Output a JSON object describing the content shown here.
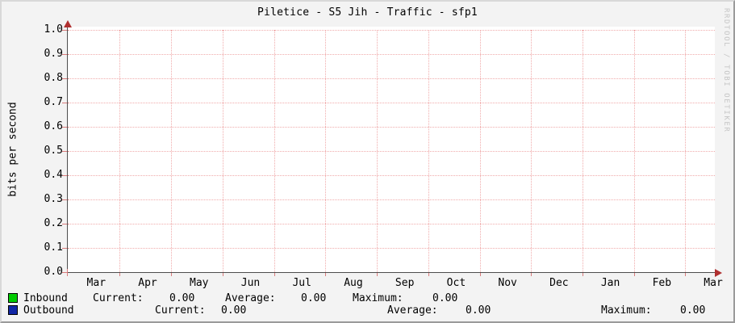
{
  "title": "Piletice - S5 Jih - Traffic - sfp1",
  "watermark": "RRDTOOL / TOBI OETIKER",
  "y_axis": {
    "label": "bits per second",
    "ticks": [
      "1.0",
      "0.9",
      "0.8",
      "0.7",
      "0.6",
      "0.5",
      "0.4",
      "0.3",
      "0.2",
      "0.1",
      "0.0"
    ]
  },
  "x_axis": {
    "ticks": [
      "Mar",
      "Apr",
      "May",
      "Jun",
      "Jul",
      "Aug",
      "Sep",
      "Oct",
      "Nov",
      "Dec",
      "Jan",
      "Feb",
      "Mar"
    ]
  },
  "legend": {
    "rows": [
      {
        "name": "Inbound",
        "swatch_color": "#00cb00",
        "stats": [
          [
            "Current:",
            "0.00"
          ],
          [
            "Average:",
            "0.00"
          ],
          [
            "Maximum:",
            "0.00"
          ]
        ]
      },
      {
        "name": "Outbound",
        "swatch_color": "#1227a5",
        "stats": [
          [
            "Current:",
            "0.00"
          ],
          [
            "Average:",
            "0.00"
          ],
          [
            "Maximum:",
            "0.00"
          ]
        ]
      }
    ]
  },
  "colors": {
    "background": "#f3f3f3",
    "canvas": "#ffffff",
    "grid": "#f0abab",
    "tick": "#d97c7c",
    "axis": "#4d4d4d",
    "arrow": "#b03030",
    "inbound": "#00cb00",
    "outbound": "#1227a5",
    "watermark": "#c6c6c6"
  },
  "chart_data": {
    "type": "line",
    "title": "Piletice - S5 Jih - Traffic - sfp1",
    "xlabel": "",
    "ylabel": "bits per second",
    "ylim": [
      0.0,
      1.0
    ],
    "y_tick_interval": 0.1,
    "y_tick_labels": [
      "1.0",
      "0.9",
      "0.8",
      "0.7",
      "0.6",
      "0.5",
      "0.4",
      "0.3",
      "0.2",
      "0.1",
      "0.0"
    ],
    "x_tick_labels": [
      "Mar",
      "Apr",
      "May",
      "Jun",
      "Jul",
      "Aug",
      "Sep",
      "Oct",
      "Nov",
      "Dec",
      "Jan",
      "Feb",
      "Mar"
    ],
    "grid": true,
    "legend_position": "bottom",
    "series": [
      {
        "name": "Inbound",
        "color": "#00cb00",
        "values": [],
        "current": 0.0,
        "average": 0.0,
        "maximum": 0.0
      },
      {
        "name": "Outbound",
        "color": "#1227a5",
        "values": [],
        "current": 0.0,
        "average": 0.0,
        "maximum": 0.0
      }
    ]
  }
}
